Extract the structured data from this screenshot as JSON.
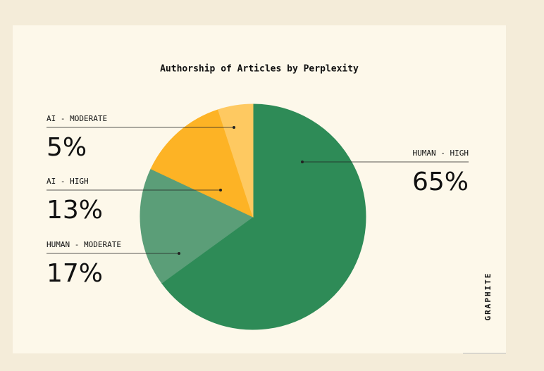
{
  "chart_data": {
    "type": "pie",
    "title": "Authorship of Articles by Perplexity",
    "categories": [
      "HUMAN - HIGH",
      "HUMAN - MODERATE",
      "AI - HIGH",
      "AI - MODERATE"
    ],
    "values": [
      65,
      17,
      13,
      5
    ],
    "value_labels": [
      "65%",
      "17%",
      "13%",
      "5%"
    ],
    "colors": [
      "#2e8b57",
      "#5b9e78",
      "#fdb325",
      "#fec961"
    ],
    "brand": "GRAPHITE"
  }
}
